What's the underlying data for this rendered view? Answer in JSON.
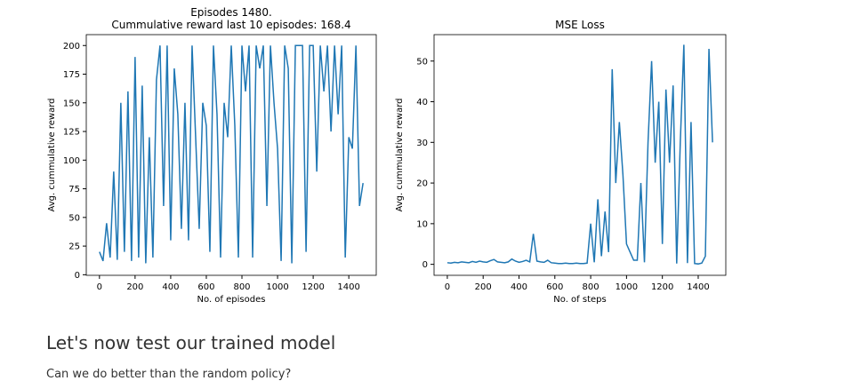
{
  "chart_data": [
    {
      "type": "line",
      "title": [
        "Episodes 1480.",
        "Cummulative reward last 10 episodes: 168.4"
      ],
      "x_label": "No. of episodes",
      "y_label": "Avg. cummulative reward",
      "x": [
        0,
        20,
        40,
        60,
        80,
        100,
        120,
        140,
        160,
        180,
        200,
        220,
        240,
        260,
        280,
        300,
        320,
        340,
        360,
        380,
        400,
        420,
        440,
        460,
        480,
        500,
        520,
        540,
        560,
        580,
        600,
        620,
        640,
        660,
        680,
        700,
        720,
        740,
        760,
        780,
        800,
        820,
        840,
        860,
        880,
        900,
        920,
        940,
        960,
        980,
        1000,
        1020,
        1040,
        1060,
        1080,
        1100,
        1120,
        1140,
        1160,
        1180,
        1200,
        1220,
        1240,
        1260,
        1280,
        1300,
        1320,
        1340,
        1360,
        1380,
        1400,
        1420,
        1440,
        1460,
        1480
      ],
      "series": [
        {
          "color": "#1f77b4",
          "values": [
            20,
            12,
            45,
            15,
            90,
            13,
            150,
            20,
            160,
            12,
            190,
            15,
            165,
            10,
            120,
            15,
            170,
            200,
            60,
            200,
            30,
            180,
            140,
            40,
            150,
            30,
            200,
            120,
            40,
            150,
            130,
            20,
            200,
            140,
            15,
            150,
            120,
            200,
            130,
            15,
            200,
            160,
            200,
            15,
            200,
            180,
            200,
            60,
            200,
            150,
            110,
            12,
            200,
            180,
            10,
            200,
            200,
            200,
            20,
            200,
            200,
            90,
            200,
            160,
            200,
            125,
            200,
            140,
            200,
            15,
            120,
            110,
            200,
            60,
            80
          ]
        }
      ],
      "xlim": [
        -74,
        1554
      ],
      "ylim": [
        -0.5,
        209.5
      ],
      "xticks": [
        0,
        200,
        400,
        600,
        800,
        1000,
        1200,
        1400
      ],
      "yticks": [
        0,
        25,
        50,
        75,
        100,
        125,
        150,
        175,
        200
      ]
    },
    {
      "type": "line",
      "title": [
        "MSE Loss"
      ],
      "x_label": "No. of steps",
      "y_label": "Avg. cummulative reward",
      "x": [
        0,
        20,
        40,
        60,
        80,
        100,
        120,
        140,
        160,
        180,
        200,
        220,
        240,
        260,
        280,
        300,
        320,
        340,
        360,
        380,
        400,
        420,
        440,
        460,
        480,
        500,
        520,
        540,
        560,
        580,
        600,
        620,
        640,
        660,
        680,
        700,
        720,
        740,
        760,
        780,
        800,
        820,
        840,
        860,
        880,
        900,
        920,
        940,
        960,
        980,
        1000,
        1020,
        1040,
        1060,
        1080,
        1100,
        1120,
        1140,
        1160,
        1180,
        1200,
        1220,
        1240,
        1260,
        1280,
        1300,
        1320,
        1340,
        1360,
        1380,
        1400,
        1420,
        1440,
        1460,
        1480
      ],
      "series": [
        {
          "color": "#1f77b4",
          "values": [
            0.4,
            0.3,
            0.5,
            0.4,
            0.6,
            0.5,
            0.4,
            0.7,
            0.5,
            0.8,
            0.6,
            0.5,
            0.9,
            1.2,
            0.6,
            0.5,
            0.4,
            0.6,
            1.3,
            0.8,
            0.5,
            0.7,
            1.0,
            0.6,
            7.5,
            0.8,
            0.6,
            0.5,
            1.0,
            0.4,
            0.3,
            0.2,
            0.2,
            0.3,
            0.2,
            0.2,
            0.3,
            0.2,
            0.2,
            0.3,
            10,
            0.5,
            16,
            2,
            13,
            3,
            48,
            20,
            35,
            22,
            5,
            3,
            1,
            1,
            20,
            0.5,
            30,
            50,
            25,
            40,
            5,
            43,
            25,
            44,
            0.2,
            30,
            54,
            0.3,
            35,
            0.2,
            0.1,
            0.3,
            2,
            53,
            30
          ]
        }
      ],
      "xlim": [
        -74,
        1554
      ],
      "ylim": [
        -2.7,
        56.5
      ],
      "xticks": [
        0,
        200,
        400,
        600,
        800,
        1000,
        1200,
        1400
      ],
      "yticks": [
        0,
        10,
        20,
        30,
        40,
        50
      ]
    }
  ],
  "notebook": {
    "heading": "Let's now test our trained model",
    "text": "Can we do better than the random policy?"
  }
}
